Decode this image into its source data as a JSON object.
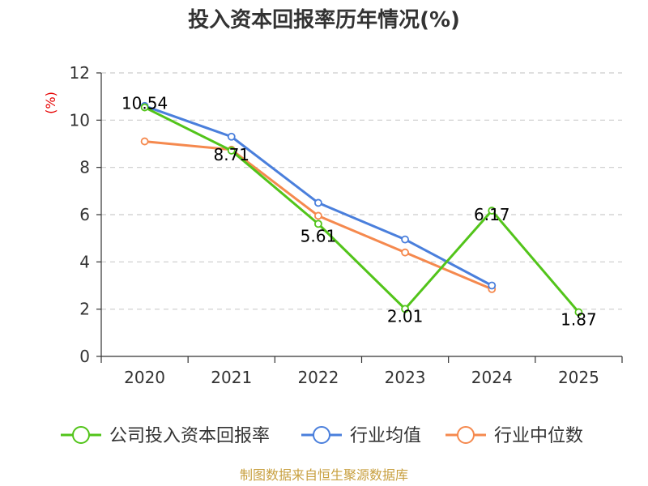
{
  "chart_data": {
    "type": "line",
    "title": "投入资本回报率历年情况(%)",
    "ylabel": "(%)",
    "xlabel": "",
    "ylim": [
      0,
      12
    ],
    "yticks": [
      0,
      2,
      4,
      6,
      8,
      10,
      12
    ],
    "categories": [
      "2020",
      "2021",
      "2022",
      "2023",
      "2024",
      "2025"
    ],
    "grid": true,
    "legend_position": "bottom",
    "series": [
      {
        "name": "公司投入资本回报率",
        "color": "#52c41a",
        "values": [
          10.54,
          8.71,
          5.61,
          2.01,
          6.17,
          1.87
        ],
        "labels": [
          "10.54",
          "8.71",
          "5.61",
          "2.01",
          "6.17",
          "1.87"
        ]
      },
      {
        "name": "行业均值",
        "color": "#4a7fdc",
        "values": [
          10.6,
          9.3,
          6.5,
          4.95,
          3.0,
          null
        ]
      },
      {
        "name": "行业中位数",
        "color": "#f5894e",
        "values": [
          9.1,
          8.75,
          5.95,
          4.4,
          2.85,
          null
        ]
      }
    ]
  },
  "footer": {
    "source": "制图数据来自恒生聚源数据库"
  }
}
